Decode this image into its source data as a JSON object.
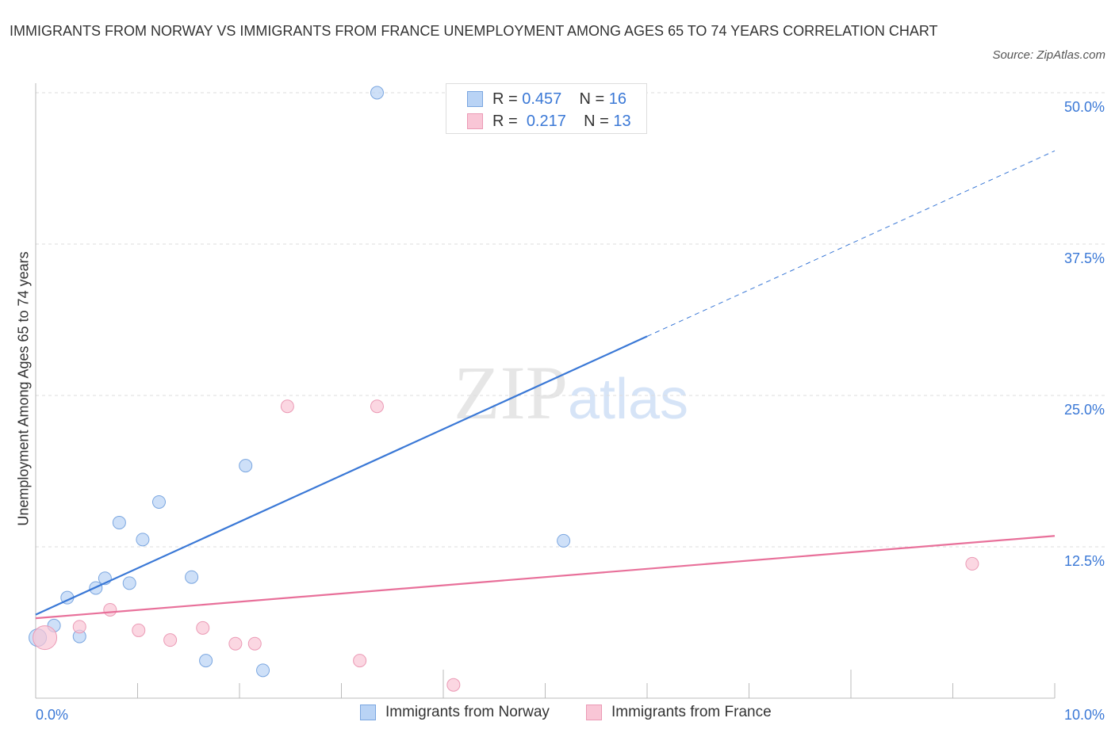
{
  "title": "IMMIGRANTS FROM NORWAY VS IMMIGRANTS FROM FRANCE UNEMPLOYMENT AMONG AGES 65 TO 74 YEARS CORRELATION CHART",
  "source": "Source: ZipAtlas.com",
  "watermark": "ZIPatlas",
  "legend": {
    "r_label": "R =",
    "n_label": "N =",
    "norway": {
      "r": "0.457",
      "n": "16"
    },
    "france": {
      "r": "0.217",
      "n": "13"
    }
  },
  "colors": {
    "norway": "#3a78d6",
    "norway_fill": "#b9d3f5",
    "france": "#e8709a",
    "france_fill": "#f9c6d6"
  },
  "chart_data": {
    "type": "scatter",
    "title": "IMMIGRANTS FROM NORWAY VS IMMIGRANTS FROM FRANCE UNEMPLOYMENT AMONG AGES 65 TO 74 YEARS CORRELATION CHART",
    "xlabel": "",
    "ylabel": "Unemployment Among Ages 65 to 74 years",
    "xlim": [
      0,
      10
    ],
    "ylim": [
      0,
      50
    ],
    "x_tick_labels": [
      "0.0%",
      "10.0%"
    ],
    "y_ticks": [
      12.5,
      25,
      37.5,
      50
    ],
    "y_tick_labels": [
      "12.5%",
      "25.0%",
      "37.5%",
      "50.0%"
    ],
    "grid": true,
    "legend_position": "bottom",
    "series": [
      {
        "name": "Immigrants from Norway",
        "points": [
          [
            3.35,
            50.0
          ],
          [
            2.06,
            19.2
          ],
          [
            1.21,
            16.2
          ],
          [
            0.82,
            14.5
          ],
          [
            1.05,
            13.1
          ],
          [
            5.18,
            13.0
          ],
          [
            0.68,
            9.9
          ],
          [
            1.53,
            10.0
          ],
          [
            0.92,
            9.5
          ],
          [
            0.59,
            9.1
          ],
          [
            0.31,
            8.3
          ],
          [
            0.18,
            6.0
          ],
          [
            0.02,
            5.0
          ],
          [
            0.43,
            5.1
          ],
          [
            1.67,
            3.1
          ],
          [
            2.23,
            2.3
          ]
        ],
        "trend": {
          "y_at_0": 6.9,
          "y_at_10": 45.2,
          "solid_until": 6.0
        }
      },
      {
        "name": "Immigrants from France",
        "points": [
          [
            2.47,
            24.1
          ],
          [
            3.35,
            24.1
          ],
          [
            9.19,
            11.1
          ],
          [
            0.73,
            7.3
          ],
          [
            0.43,
            5.9
          ],
          [
            1.01,
            5.6
          ],
          [
            1.64,
            5.8
          ],
          [
            1.32,
            4.8
          ],
          [
            1.96,
            4.5
          ],
          [
            2.15,
            4.5
          ],
          [
            3.18,
            3.1
          ],
          [
            4.1,
            1.1
          ],
          [
            0.09,
            5.0
          ]
        ],
        "trend": {
          "y_at_0": 6.6,
          "y_at_10": 13.4,
          "solid_until": 10
        }
      }
    ]
  }
}
